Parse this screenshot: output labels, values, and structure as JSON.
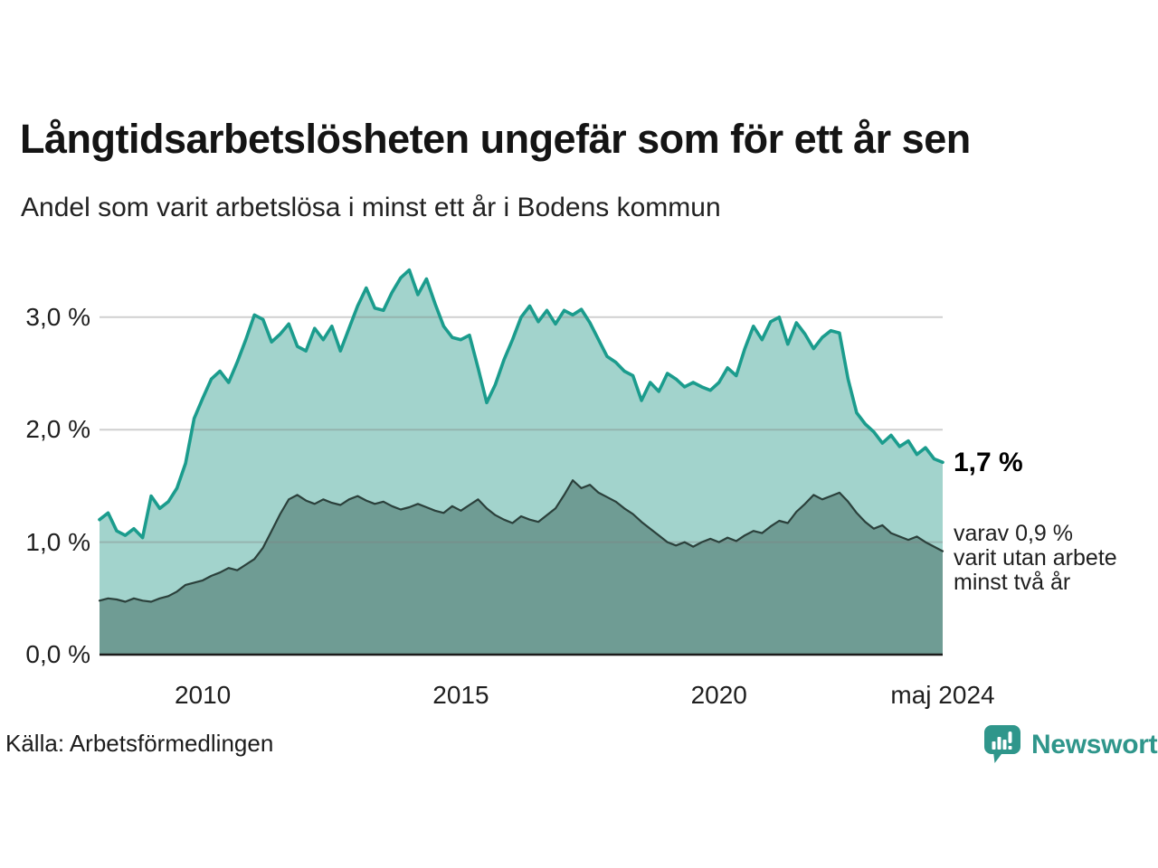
{
  "header": {
    "title": "Långtidsarbetslösheten ungefär som för ett år sen",
    "subtitle": "Andel som varit arbetslösa i minst ett år i Bodens kommun"
  },
  "annotations": {
    "end_value": "1,7 %",
    "note_line1": "varav 0,9 %",
    "note_line2": "varit utan arbete",
    "note_line3": "minst två år"
  },
  "footer": {
    "source": "Källa: Arbetsförmedlingen",
    "brand": "Newsworthy",
    "brand_color": "#2f968b",
    "brand_icon": "bar-chart-speech-bubble"
  },
  "chart_data": {
    "type": "area",
    "title": "Långtidsarbetslösheten ungefär som för ett år sen",
    "subtitle": "Andel som varit arbetslösa i minst ett år i Bodens kommun",
    "unit": "%",
    "x_start_year": 2008.0,
    "x_step_years": 0.16667,
    "x_end_year": 2024.333,
    "x_end_label": "maj 2024",
    "ylim": [
      0,
      3.55
    ],
    "grid": "horizontal",
    "legend": "none",
    "yticks": [
      {
        "v": 0,
        "label": "0,0 %"
      },
      {
        "v": 1,
        "label": "1,0 %"
      },
      {
        "v": 2,
        "label": "2,0 %"
      },
      {
        "v": 3,
        "label": "3,0 %"
      }
    ],
    "xticks": [
      {
        "x": 2010,
        "label": "2010"
      },
      {
        "x": 2015,
        "label": "2015"
      },
      {
        "x": 2020,
        "label": "2020"
      },
      {
        "x": 2024.333,
        "label": "maj 2024"
      }
    ],
    "series": [
      {
        "name": "Andel som varit arbetslösa i minst ett år",
        "line_color": "#1b9c8d",
        "fill_color": "#a2d3cc",
        "end_value_pct": 1.7,
        "values": [
          1.2,
          1.26,
          1.1,
          1.06,
          1.12,
          1.04,
          1.41,
          1.3,
          1.36,
          1.48,
          1.7,
          2.1,
          2.28,
          2.45,
          2.52,
          2.42,
          2.6,
          2.8,
          3.02,
          2.98,
          2.78,
          2.85,
          2.94,
          2.74,
          2.7,
          2.9,
          2.8,
          2.92,
          2.7,
          2.9,
          3.1,
          3.26,
          3.08,
          3.06,
          3.22,
          3.35,
          3.42,
          3.2,
          3.34,
          3.12,
          2.92,
          2.82,
          2.8,
          2.84,
          2.55,
          2.24,
          2.4,
          2.62,
          2.8,
          3.0,
          3.1,
          2.96,
          3.06,
          2.94,
          3.06,
          3.02,
          3.07,
          2.95,
          2.8,
          2.65,
          2.6,
          2.52,
          2.48,
          2.26,
          2.42,
          2.34,
          2.5,
          2.45,
          2.38,
          2.42,
          2.38,
          2.35,
          2.42,
          2.55,
          2.48,
          2.72,
          2.92,
          2.8,
          2.96,
          3.0,
          2.76,
          2.95,
          2.85,
          2.72,
          2.82,
          2.88,
          2.86,
          2.45,
          2.15,
          2.05,
          1.98,
          1.88,
          1.95,
          1.85,
          1.9,
          1.78,
          1.84,
          1.74,
          1.71
        ]
      },
      {
        "name": "Varav utan arbete minst två år",
        "line_color": "#2b403b",
        "fill_color": "#6f9c94",
        "end_value_pct": 0.9,
        "values": [
          0.48,
          0.5,
          0.49,
          0.47,
          0.5,
          0.48,
          0.47,
          0.5,
          0.52,
          0.56,
          0.62,
          0.64,
          0.66,
          0.7,
          0.73,
          0.77,
          0.75,
          0.8,
          0.85,
          0.95,
          1.1,
          1.25,
          1.38,
          1.42,
          1.37,
          1.34,
          1.38,
          1.35,
          1.33,
          1.38,
          1.41,
          1.37,
          1.34,
          1.36,
          1.32,
          1.29,
          1.31,
          1.34,
          1.31,
          1.28,
          1.26,
          1.32,
          1.28,
          1.33,
          1.38,
          1.3,
          1.24,
          1.2,
          1.17,
          1.23,
          1.2,
          1.18,
          1.24,
          1.3,
          1.42,
          1.55,
          1.48,
          1.51,
          1.44,
          1.4,
          1.36,
          1.3,
          1.25,
          1.18,
          1.12,
          1.06,
          1.0,
          0.97,
          1.0,
          0.96,
          1.0,
          1.03,
          1.0,
          1.04,
          1.01,
          1.06,
          1.1,
          1.08,
          1.14,
          1.19,
          1.17,
          1.27,
          1.34,
          1.42,
          1.38,
          1.41,
          1.44,
          1.36,
          1.26,
          1.18,
          1.12,
          1.15,
          1.08,
          1.05,
          1.02,
          1.05,
          1.0,
          0.96,
          0.92
        ]
      }
    ]
  }
}
